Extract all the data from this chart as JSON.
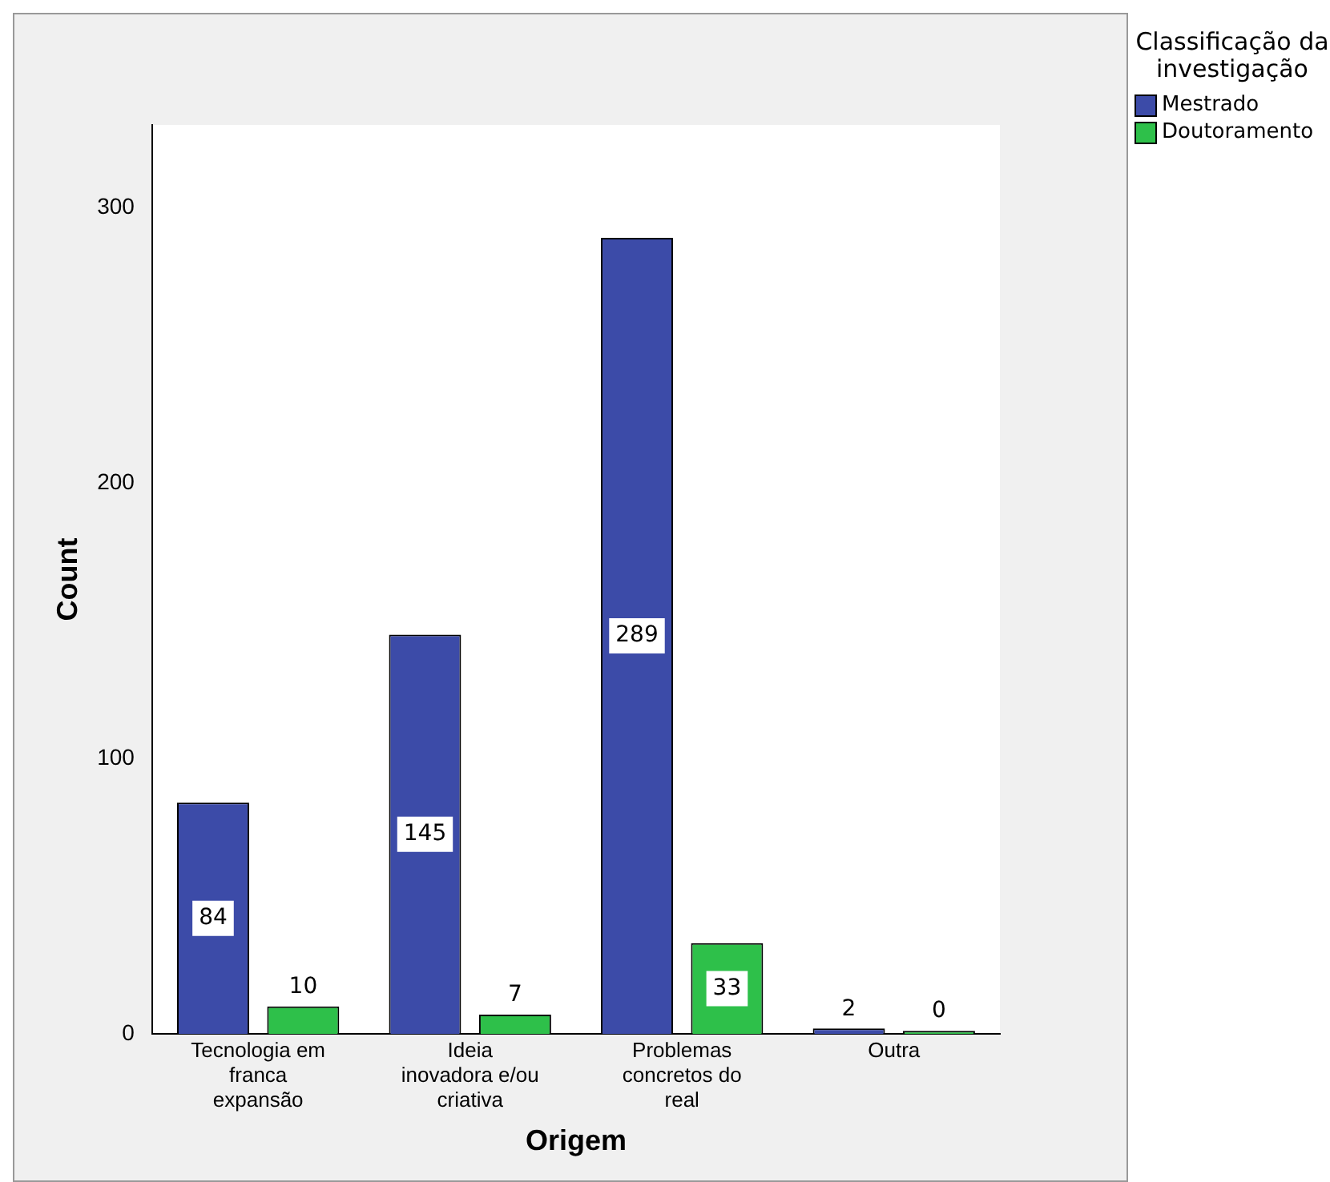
{
  "chart_data": {
    "type": "bar",
    "xlabel": "Origem",
    "ylabel": "Count",
    "legend_title": "Classificação da investigação",
    "legend": "top right",
    "categories": [
      "Tecnologia em franca expansão",
      "Ideia inovadora e/ou criativa",
      "Problemas concretos do real",
      "Outra"
    ],
    "series": [
      {
        "name": "Mestrado",
        "color": "#3c4ba8",
        "values": [
          84,
          145,
          289,
          2
        ]
      },
      {
        "name": "Doutoramento",
        "color": "#2ec04a",
        "values": [
          10,
          7,
          33,
          0
        ]
      }
    ],
    "ylim": [
      0,
      330
    ],
    "yticks": [
      0,
      100,
      200,
      300
    ],
    "grid": false,
    "data_labels": true
  }
}
